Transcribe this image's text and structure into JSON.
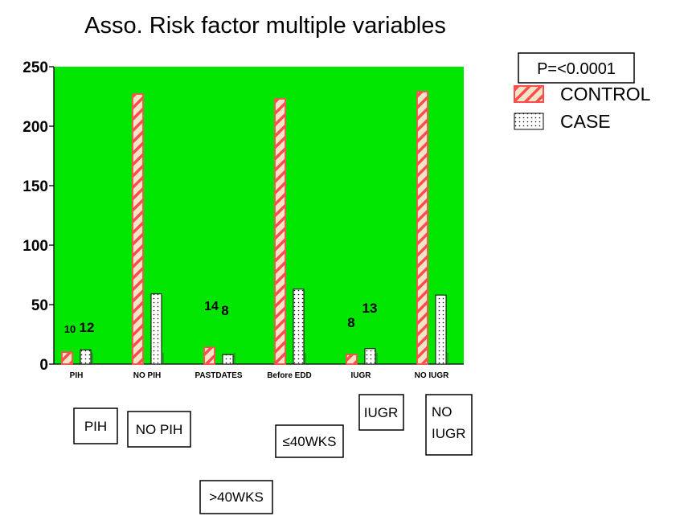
{
  "chart_data": {
    "type": "bar",
    "title": "Asso. Risk factor multiple variables",
    "categories": [
      "PIH",
      "NO PIH",
      "PASTDATES",
      "Before EDD",
      "IUGR",
      "NO IUGR"
    ],
    "series": [
      {
        "name": "CONTROL",
        "values": [
          10,
          227,
          14,
          223,
          8,
          229
        ],
        "pattern": "diagonal-hatch",
        "color": "#ff4d4d"
      },
      {
        "name": "CASE",
        "values": [
          12,
          59,
          8,
          63,
          13,
          58
        ],
        "pattern": "dots",
        "color": "#000000"
      }
    ],
    "data_labels": [
      {
        "category": "PIH",
        "text": "10",
        "series": "CONTROL"
      },
      {
        "category": "PIH",
        "text": "12",
        "series": "CASE"
      },
      {
        "category": "PASTDATES",
        "text": "14",
        "series": "CONTROL"
      },
      {
        "category": "PASTDATES",
        "text": "8",
        "series": "CASE"
      },
      {
        "category": "IUGR",
        "text": "8",
        "series": "CONTROL"
      },
      {
        "category": "IUGR",
        "text": "13",
        "series": "CASE"
      }
    ],
    "yticks": [
      0,
      50,
      100,
      150,
      200,
      250
    ],
    "ylim": [
      0,
      250
    ],
    "grid": false,
    "background": "#00e600",
    "legend_position": "right",
    "p_value": "P=<0.0001",
    "annotations": [
      {
        "text": "PIH"
      },
      {
        "text": "NO PIH"
      },
      {
        "text": ">40WKS"
      },
      {
        "text": "≤40WKS"
      },
      {
        "text": "IUGR"
      },
      {
        "text": "NO IUGR"
      }
    ]
  }
}
